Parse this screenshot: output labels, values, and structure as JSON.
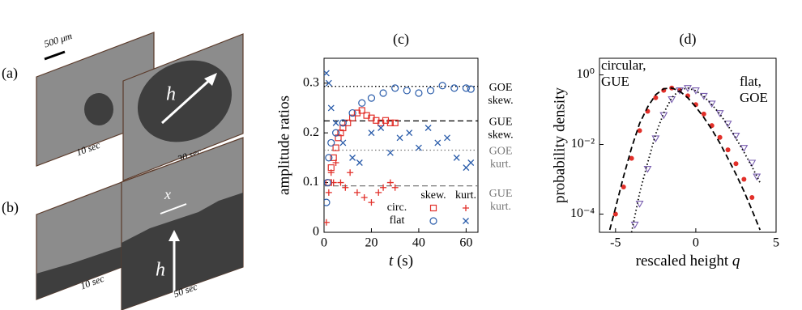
{
  "images": {
    "labels": [
      "(a)",
      "(b)"
    ],
    "scale_bar": "500 μm",
    "times": [
      "10 sec",
      "30 sec",
      "10 sec",
      "50 sec"
    ],
    "arrows": [
      "h",
      "h",
      "x"
    ]
  },
  "chart_data": [
    {
      "type": "scatter",
      "title": "(c)",
      "xlabel": [
        "t",
        "(s)"
      ],
      "ylabel": "amplitude ratios",
      "xlim": [
        0,
        65
      ],
      "ylim": [
        0,
        0.35
      ],
      "xticks": [
        0,
        20,
        40,
        60
      ],
      "yticks": [
        0,
        0.1,
        0.2,
        0.3
      ],
      "reference_lines": [
        {
          "value": 0.2935,
          "label": [
            "GOE",
            "skew."
          ],
          "style": "dotted",
          "color": "#000000"
        },
        {
          "value": 0.2241,
          "label": [
            "GUE",
            "skew."
          ],
          "style": "dashed",
          "color": "#000000"
        },
        {
          "value": 0.1652,
          "label": [
            "GOE",
            "kurt."
          ],
          "style": "dotted",
          "color": "#777777"
        },
        {
          "value": 0.0934,
          "label": [
            "GUE",
            "kurt."
          ],
          "style": "dashed",
          "color": "#777777"
        }
      ],
      "legend": {
        "columns": [
          "skew.",
          "kurt."
        ],
        "rows": [
          "circ.",
          "flat"
        ]
      },
      "series": [
        {
          "marker": "square",
          "color": "#e2302a",
          "x": [
            2,
            3,
            4,
            5,
            6,
            7,
            8,
            10,
            12,
            14,
            16,
            18,
            20,
            22,
            24,
            26,
            28,
            30
          ],
          "values": [
            0.1,
            0.13,
            0.15,
            0.17,
            0.19,
            0.2,
            0.21,
            0.22,
            0.23,
            0.24,
            0.245,
            0.235,
            0.23,
            0.225,
            0.22,
            0.225,
            0.22,
            0.22
          ]
        },
        {
          "marker": "plus",
          "color": "#e2302a",
          "x": [
            1,
            2,
            3,
            4,
            5,
            7,
            9,
            11,
            14,
            17,
            20,
            23,
            25,
            28,
            30
          ],
          "values": [
            0.02,
            0.08,
            0.12,
            0.1,
            0.14,
            0.1,
            0.09,
            0.12,
            0.08,
            0.07,
            0.06,
            0.08,
            0.09,
            0.1,
            0.09
          ]
        },
        {
          "marker": "circle",
          "color": "#2a5caa",
          "x": [
            1,
            1.5,
            2,
            3,
            5,
            8,
            12,
            16,
            20,
            25,
            30,
            35,
            40,
            45,
            50,
            55,
            60,
            62
          ],
          "values": [
            0.06,
            0.1,
            0.15,
            0.18,
            0.2,
            0.22,
            0.24,
            0.26,
            0.27,
            0.28,
            0.29,
            0.285,
            0.28,
            0.285,
            0.295,
            0.29,
            0.29,
            0.288
          ]
        },
        {
          "marker": "cross",
          "color": "#2a5caa",
          "x": [
            1,
            2,
            3,
            5,
            8,
            12,
            15,
            20,
            24,
            28,
            32,
            36,
            40,
            44,
            48,
            52,
            56,
            60,
            62
          ],
          "values": [
            0.32,
            0.3,
            0.25,
            0.22,
            0.18,
            0.15,
            0.14,
            0.2,
            0.21,
            0.16,
            0.19,
            0.2,
            0.17,
            0.21,
            0.18,
            0.19,
            0.15,
            0.13,
            0.14
          ]
        }
      ]
    },
    {
      "type": "scatter",
      "title": "(d)",
      "xlabel": [
        "rescaled height",
        "q"
      ],
      "ylabel": "probability density",
      "log_y": true,
      "xlim": [
        -6,
        5
      ],
      "ylim": [
        3e-05,
        3
      ],
      "xticks": [
        -5,
        0,
        5
      ],
      "yticks": [
        {
          "value": 1,
          "label": "10⁰"
        },
        {
          "value": 0.01,
          "label": "10⁻²"
        },
        {
          "value": 0.0001,
          "label": "10⁻⁴"
        }
      ],
      "annotations": [
        [
          "circular,",
          "GUE"
        ],
        [
          "flat,",
          "GOE"
        ]
      ],
      "series": [
        {
          "marker": "dot",
          "color": "#e2302a",
          "x": [
            -5,
            -4.5,
            -4,
            -3.5,
            -3,
            -2.5,
            -2,
            -1.5,
            -1,
            -0.5,
            0,
            0.5,
            1,
            1.5,
            2,
            2.5,
            3,
            3.5
          ],
          "values": [
            0.0001,
            0.0006,
            0.004,
            0.025,
            0.09,
            0.22,
            0.36,
            0.42,
            0.36,
            0.25,
            0.14,
            0.075,
            0.035,
            0.016,
            0.007,
            0.0028,
            0.001,
            0.0003
          ]
        },
        {
          "marker": "triangle",
          "color": "#7a5fb0",
          "x": [
            -3.8,
            -3.5,
            -3,
            -2.5,
            -2,
            -1.5,
            -1,
            -0.5,
            0,
            0.5,
            1,
            1.5,
            2,
            2.5,
            3,
            3.5,
            3.8
          ],
          "values": [
            5e-05,
            0.0002,
            0.002,
            0.015,
            0.07,
            0.2,
            0.36,
            0.42,
            0.36,
            0.25,
            0.15,
            0.08,
            0.04,
            0.018,
            0.008,
            0.003,
            0.0012
          ]
        },
        {
          "line": "dashed",
          "color": "#000000",
          "x": [
            -5.5,
            -5,
            -4.5,
            -4,
            -3.5,
            -3,
            -2.5,
            -2,
            -1.5,
            -1,
            -0.5,
            0,
            0.5,
            1,
            1.5,
            2,
            2.5,
            3,
            3.5,
            4
          ],
          "values": [
            2e-05,
            0.00015,
            0.0012,
            0.008,
            0.04,
            0.12,
            0.27,
            0.4,
            0.42,
            0.34,
            0.22,
            0.12,
            0.06,
            0.027,
            0.011,
            0.004,
            0.0014,
            0.00045,
            0.00013,
            3.5e-05
          ]
        },
        {
          "line": "dotted",
          "color": "#000000",
          "x": [
            -4,
            -3.5,
            -3,
            -2.5,
            -2,
            -1.5,
            -1,
            -0.5,
            0,
            0.5,
            1,
            1.5,
            2,
            2.5,
            3,
            3.5,
            4
          ],
          "values": [
            3e-05,
            0.0004,
            0.003,
            0.02,
            0.08,
            0.22,
            0.37,
            0.42,
            0.35,
            0.24,
            0.14,
            0.075,
            0.035,
            0.015,
            0.006,
            0.0023,
            0.0008
          ]
        }
      ]
    }
  ]
}
